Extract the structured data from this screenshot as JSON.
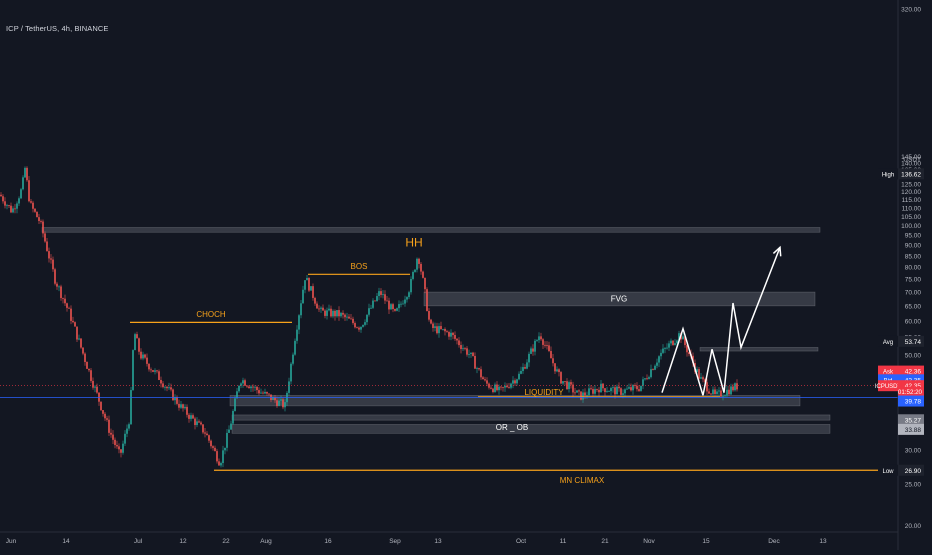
{
  "header": {
    "symbol": "ICP / TetherUS",
    "interval": "4h",
    "exchange": "BINANCE"
  },
  "axis": {
    "currency": "USDT"
  },
  "price_badges": {
    "high": {
      "label": "High",
      "value": "136.62"
    },
    "avg": {
      "label": "Avg",
      "value": "53.74"
    },
    "ask": {
      "label": "Ask",
      "value": "42.36"
    },
    "bid": {
      "label": "Bid",
      "value": "42.35"
    },
    "last": {
      "label": "ICPUSDT",
      "value": "42.35",
      "countdown": "01:52:20"
    },
    "level_a": {
      "value": "39.78"
    },
    "level_b": {
      "value": "35.27"
    },
    "level_c": {
      "value": "33.88"
    },
    "low": {
      "label": "Low",
      "value": "26.90"
    }
  },
  "annotations": {
    "hh": "HH",
    "bos": "BOS",
    "choch": "CHOCH",
    "fvg": "FVG",
    "liquidity": "LIQUIDITY",
    "or_ob": "OR _ OB",
    "mn_climax": "MN CLIMAX"
  },
  "colors": {
    "background": "#131722",
    "up": "#26a69a",
    "down": "#ef5350",
    "annotation_orange": "#f7a21b",
    "level_blue": "#2962ff",
    "last_price_red": "#f23645",
    "zone": "rgba(120,123,134,0.35)",
    "projection": "#ffffff"
  },
  "chart_data": {
    "type": "candlestick",
    "y_scale": "log",
    "ylim": [
      18.5,
      325
    ],
    "y_ticks": [
      20,
      25,
      30,
      35,
      40,
      45,
      50,
      55,
      60,
      65,
      70,
      75,
      80,
      85,
      90,
      95,
      100,
      105,
      110,
      115,
      120,
      125,
      130,
      135,
      140,
      145,
      320
    ],
    "x_ticks": [
      "Jun",
      "14",
      "Jul",
      "12",
      "22",
      "Aug",
      "16",
      "Sep",
      "13",
      "Oct",
      "11",
      "21",
      "Nov",
      "15",
      "Dec",
      "13"
    ],
    "price_path": [
      [
        0,
        118
      ],
      [
        12,
        108
      ],
      [
        22,
        122
      ],
      [
        25,
        136
      ],
      [
        30,
        112
      ],
      [
        40,
        102
      ],
      [
        55,
        75
      ],
      [
        70,
        62
      ],
      [
        90,
        45
      ],
      [
        110,
        33
      ],
      [
        120,
        29
      ],
      [
        130,
        36
      ],
      [
        134,
        57
      ],
      [
        140,
        50
      ],
      [
        160,
        44
      ],
      [
        180,
        38
      ],
      [
        205,
        33
      ],
      [
        220,
        28
      ],
      [
        230,
        34
      ],
      [
        240,
        44
      ],
      [
        260,
        41
      ],
      [
        285,
        38
      ],
      [
        295,
        55
      ],
      [
        305,
        76
      ],
      [
        320,
        63
      ],
      [
        340,
        62
      ],
      [
        360,
        58
      ],
      [
        380,
        70
      ],
      [
        395,
        62
      ],
      [
        410,
        72
      ],
      [
        418,
        86
      ],
      [
        424,
        72
      ],
      [
        430,
        58
      ],
      [
        450,
        56
      ],
      [
        470,
        50
      ],
      [
        485,
        43
      ],
      [
        500,
        41
      ],
      [
        520,
        45
      ],
      [
        540,
        56
      ],
      [
        560,
        44
      ],
      [
        580,
        40
      ],
      [
        600,
        42
      ],
      [
        620,
        41
      ],
      [
        640,
        42
      ],
      [
        660,
        50
      ],
      [
        680,
        56
      ],
      [
        700,
        44
      ],
      [
        715,
        40
      ],
      [
        725,
        41
      ],
      [
        738,
        42.35
      ]
    ],
    "zones": [
      {
        "name": "supply-zone",
        "x0": 42,
        "x1": 820,
        "y_top": 99,
        "y_bottom": 96.5
      },
      {
        "name": "fvg-zone",
        "x0": 424,
        "x1": 815,
        "y_top": 70,
        "y_bottom": 65
      },
      {
        "name": "upper-range-zone",
        "x0": 700,
        "x1": 818,
        "y_top": 52,
        "y_bottom": 51
      },
      {
        "name": "liquidity-zone",
        "x0": 230,
        "x1": 800,
        "y_top": 40.2,
        "y_bottom": 38
      },
      {
        "name": "or-ob-zone-1",
        "x0": 232,
        "x1": 830,
        "y_top": 36.2,
        "y_bottom": 35.2
      },
      {
        "name": "or-ob-zone-2",
        "x0": 232,
        "x1": 830,
        "y_top": 34.4,
        "y_bottom": 32.8
      }
    ],
    "levels": [
      {
        "name": "choch-line",
        "x0": 130,
        "x1": 292,
        "y": 59.5
      },
      {
        "name": "bos-line",
        "x0": 308,
        "x1": 410,
        "y": 77
      },
      {
        "name": "liquidity-line",
        "x0": 478,
        "x1": 720,
        "y": 39.9
      },
      {
        "name": "mn-climax-line",
        "x0": 214,
        "x1": 880,
        "y": 26.9
      },
      {
        "name": "blue-level-line",
        "x0": 0,
        "x1": 898,
        "y": 39.78
      },
      {
        "name": "last-price-line",
        "x0": 0,
        "x1": 898,
        "y": 42.35
      }
    ],
    "projection": [
      [
        662,
        40.8
      ],
      [
        683,
        57.5
      ],
      [
        703,
        40.2
      ],
      [
        712,
        51.5
      ],
      [
        724,
        40.8
      ],
      [
        733,
        66
      ],
      [
        741,
        52
      ],
      [
        780,
        89
      ]
    ]
  }
}
